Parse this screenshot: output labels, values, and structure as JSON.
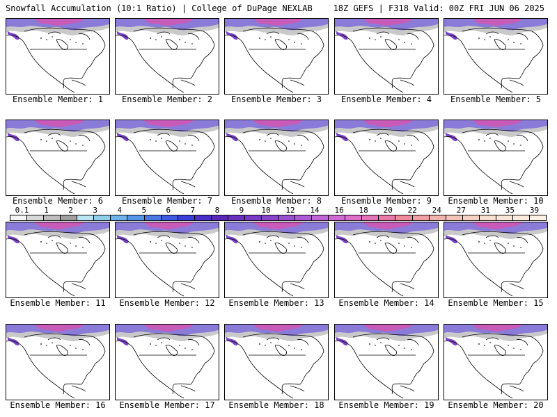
{
  "header": {
    "left": "Snowfall Accumulation (10:1 Ratio) | College of DuPage NEXLAB",
    "right": "18Z GEFS | F318 Valid: 00Z FRI JUN 06 2025"
  },
  "members": [
    "Ensemble Member: 1",
    "Ensemble Member: 2",
    "Ensemble Member: 3",
    "Ensemble Member: 4",
    "Ensemble Member: 5",
    "Ensemble Member: 6",
    "Ensemble Member: 7",
    "Ensemble Member: 8",
    "Ensemble Member: 9",
    "Ensemble Member: 10",
    "Ensemble Member: 11",
    "Ensemble Member: 12",
    "Ensemble Member: 13",
    "Ensemble Member: 14",
    "Ensemble Member: 15",
    "Ensemble Member: 16",
    "Ensemble Member: 17",
    "Ensemble Member: 18",
    "Ensemble Member: 19",
    "Ensemble Member: 20"
  ],
  "colorbar": {
    "labels": [
      "0.1",
      "1",
      "2",
      "3",
      "4",
      "5",
      "6",
      "7",
      "8",
      "9",
      "10",
      "12",
      "14",
      "16",
      "18",
      "20",
      "22",
      "24",
      "27",
      "31",
      "35",
      "39"
    ],
    "colors": [
      "#f5f5f5",
      "#d8d8d8",
      "#bdbdbd",
      "#a0a0a0",
      "#b8e6f2",
      "#8ecfee",
      "#6fb3ea",
      "#5696e8",
      "#4a78e4",
      "#3d5ae0",
      "#3a3fd8",
      "#4a2fc8",
      "#5a28b8",
      "#6a30c0",
      "#7a3ac8",
      "#8a44cc",
      "#9a4ed0",
      "#ae5ad4",
      "#c064d6",
      "#d06ad4",
      "#dc70c8",
      "#e474b8",
      "#ea78a8",
      "#ee8c9c",
      "#f0a0a4",
      "#f2b4ae",
      "#f4c4b8",
      "#f6d2c4",
      "#f8dece",
      "#fae6d8",
      "#fcecde",
      "#fdf2e6"
    ]
  }
}
